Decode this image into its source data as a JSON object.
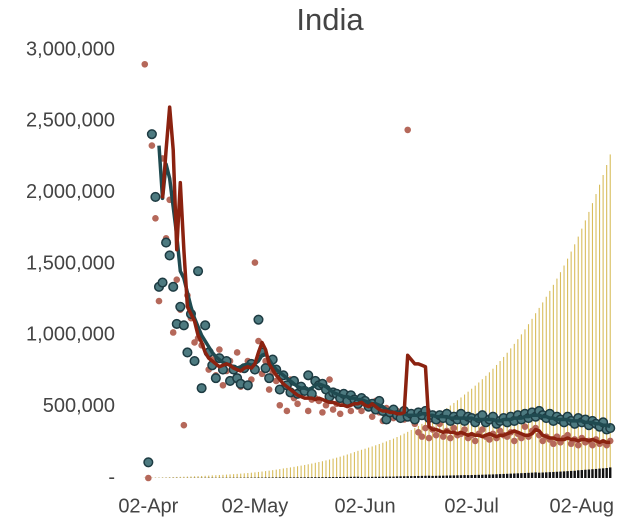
{
  "chart_data": {
    "type": "combo",
    "title": "India",
    "categories": [
      null,
      "02-Apr",
      null,
      null,
      null,
      null,
      null,
      null,
      null,
      null,
      null,
      null,
      null,
      null,
      null,
      null,
      null,
      null,
      null,
      null,
      null,
      null,
      null,
      null,
      null,
      null,
      null,
      null,
      null,
      null,
      null,
      "02-May",
      null,
      null,
      null,
      null,
      null,
      null,
      null,
      null,
      null,
      null,
      null,
      null,
      null,
      null,
      null,
      null,
      null,
      null,
      null,
      null,
      null,
      null,
      null,
      null,
      null,
      null,
      null,
      null,
      null,
      null,
      "02-Jun",
      null,
      null,
      null,
      null,
      null,
      null,
      null,
      null,
      null,
      null,
      null,
      null,
      null,
      null,
      null,
      null,
      null,
      null,
      null,
      null,
      null,
      null,
      null,
      null,
      null,
      null,
      null,
      null,
      null,
      "02-Jul",
      null,
      null,
      null,
      null,
      null,
      null,
      null,
      null,
      null,
      null,
      null,
      null,
      null,
      null,
      null,
      null,
      null,
      null,
      null,
      null,
      null,
      null,
      null,
      null,
      null,
      null,
      null,
      null,
      null,
      null,
      "02-Aug",
      null,
      null,
      null,
      null,
      null,
      null,
      null,
      null
    ],
    "ylim": [
      0,
      3000000
    ],
    "yticks": [
      {
        "value": 0,
        "label": "-"
      },
      {
        "value": 500000,
        "label": "500,000"
      },
      {
        "value": 1000000,
        "label": "1,000,000"
      },
      {
        "value": 1500000,
        "label": "1,500,000"
      },
      {
        "value": 2000000,
        "label": "2,000,000"
      },
      {
        "value": 2500000,
        "label": "2,500,000"
      },
      {
        "value": 3000000,
        "label": "3,000,000"
      }
    ],
    "series": [
      {
        "type": "bar",
        "color": "#d8bd5c",
        "values": [
          1998,
          2318,
          2689,
          3119,
          3618,
          4197,
          4869,
          5648,
          6551,
          7600,
          8307,
          9079,
          9924,
          10847,
          11856,
          12958,
          14163,
          15480,
          16920,
          18500,
          19712,
          21003,
          22379,
          23845,
          25407,
          27071,
          28844,
          30733,
          32746,
          34900,
          37238,
          39733,
          42395,
          45236,
          48267,
          51501,
          54951,
          58633,
          62561,
          67000,
          70551,
          74290,
          78227,
          82373,
          86739,
          91336,
          96177,
          101274,
          106642,
          112000,
          117544,
          123362,
          129469,
          135878,
          142604,
          149663,
          157071,
          164846,
          173006,
          181570,
          190500,
          197739,
          205253,
          213053,
          221149,
          229553,
          238276,
          247330,
          256729,
          266485,
          276000,
          287206,
          298866,
          310999,
          323626,
          336765,
          350438,
          364665,
          379470,
          394877,
          411000,
          425755,
          441039,
          456872,
          473274,
          490264,
          507864,
          526096,
          544983,
          564548,
          585000,
          605066,
          625820,
          647286,
          669488,
          692452,
          716203,
          740769,
          766177,
          792457,
          820000,
          848536,
          878065,
          908622,
          940242,
          972962,
          1006821,
          1041858,
          1078115,
          1115633,
          1155000,
          1192307,
          1230819,
          1270574,
          1311614,
          1353979,
          1397713,
          1442859,
          1489463,
          1537574,
          1587238,
          1638000,
          1692054,
          1747892,
          1805572,
          1865156,
          1926706,
          1990287,
          2055966,
          2123813,
          2193899,
          2268000
        ]
      },
      {
        "type": "bar",
        "color": "#111111",
        "values": [
          437,
          320,
          371,
          430,
          499,
          579,
          672,
          779,
          903,
          1049,
          707,
          772,
          845,
          923,
          1009,
          1102,
          1205,
          1317,
          1440,
          1580,
          1212,
          1291,
          1376,
          1466,
          1562,
          1664,
          1773,
          1889,
          2013,
          2154,
          2338,
          2495,
          2662,
          2841,
          3031,
          3234,
          3450,
          3682,
          3928,
          4439,
          3551,
          3739,
          3937,
          4146,
          4366,
          4597,
          4841,
          5097,
          5368,
          5358,
          5544,
          5818,
          6107,
          6409,
          6726,
          7059,
          7408,
          7775,
          8160,
          8564,
          8930,
          7239,
          7514,
          7800,
          8096,
          8404,
          8723,
          9054,
          9399,
          9756,
          9515,
          11206,
          11660,
          12133,
          12627,
          13139,
          13673,
          14227,
          14805,
          15407,
          16123,
          14755,
          15284,
          15833,
          16402,
          16990,
          17600,
          18232,
          18887,
          19565,
          20452,
          20066,
          20754,
          21466,
          22202,
          22964,
          23751,
          24566,
          25408,
          26280,
          27543,
          28536,
          29529,
          30557,
          31620,
          32720,
          33859,
          35037,
          36257,
          37518,
          39367,
          37307,
          38512,
          39755,
          41040,
          42365,
          43734,
          45146,
          46604,
          48111,
          49664,
          50762,
          54054,
          55838,
          57680,
          59584,
          61550,
          63581,
          65679,
          67847,
          70086,
          74101
        ]
      },
      {
        "type": "scatter",
        "color": "#b5685a",
        "values": [
          2900000,
          0,
          2330000,
          1820000,
          1240000,
          2240000,
          1680000,
          1950000,
          1020000,
          1390000,
          1180000,
          370000,
          1280000,
          1120000,
          950000,
          980000,
          930000,
          1080000,
          760000,
          830000,
          720000,
          900000,
          650000,
          750000,
          820000,
          690000,
          880000,
          640000,
          780000,
          820000,
          690000,
          1510000,
          960000,
          730000,
          820000,
          620000,
          740000,
          680000,
          510000,
          640000,
          470000,
          690000,
          560000,
          520000,
          610000,
          600000,
          470000,
          550000,
          560000,
          540000,
          460000,
          510000,
          690000,
          480000,
          520000,
          450000,
          530000,
          540000,
          470000,
          550000,
          500000,
          470000,
          520000,
          490000,
          430000,
          540000,
          460000,
          400000,
          490000,
          440000,
          420000,
          470000,
          410000,
          410000,
          2440000,
          430000,
          380000,
          320000,
          290000,
          350000,
          280000,
          340000,
          300000,
          380000,
          290000,
          330000,
          280000,
          350000,
          300000,
          310000,
          340000,
          280000,
          300000,
          260000,
          310000,
          340000,
          290000,
          270000,
          310000,
          280000,
          330000,
          300000,
          290000,
          320000,
          260000,
          310000,
          280000,
          360000,
          290000,
          330000,
          350000,
          300000,
          260000,
          290000,
          270000,
          240000,
          290000,
          250000,
          280000,
          300000,
          240000,
          270000,
          230000,
          280000,
          250000,
          260000,
          230000,
          270000,
          240000,
          250000,
          230000,
          260000
        ]
      },
      {
        "type": "scatter",
        "color": "#4d7a80",
        "edge": "#1d3b42",
        "values": [
          null,
          110000,
          2410000,
          1970000,
          1340000,
          1370000,
          1650000,
          1560000,
          1340000,
          1080000,
          1200000,
          1070000,
          880000,
          1150000,
          820000,
          1450000,
          630000,
          1070000,
          880000,
          790000,
          700000,
          840000,
          760000,
          820000,
          680000,
          760000,
          700000,
          660000,
          770000,
          650000,
          800000,
          760000,
          1110000,
          880000,
          770000,
          700000,
          830000,
          760000,
          620000,
          720000,
          650000,
          600000,
          680000,
          590000,
          640000,
          610000,
          720000,
          590000,
          680000,
          650000,
          660000,
          620000,
          570000,
          600000,
          590000,
          560000,
          590000,
          540000,
          580000,
          550000,
          520000,
          560000,
          540000,
          500000,
          520000,
          480000,
          540000,
          470000,
          410000,
          460000,
          480000,
          440000,
          420000,
          470000,
          430000,
          450000,
          410000,
          460000,
          440000,
          470000,
          420000,
          440000,
          410000,
          440000,
          420000,
          450000,
          400000,
          430000,
          410000,
          450000,
          400000,
          430000,
          420000,
          390000,
          420000,
          440000,
          390000,
          410000,
          430000,
          380000,
          400000,
          420000,
          390000,
          430000,
          400000,
          440000,
          410000,
          450000,
          420000,
          460000,
          430000,
          470000,
          440000,
          420000,
          450000,
          400000,
          430000,
          410000,
          390000,
          430000,
          400000,
          380000,
          420000,
          390000,
          410000,
          370000,
          400000,
          380000,
          360000,
          390000,
          340000,
          350000
        ]
      },
      {
        "type": "line",
        "color": "#1f4a50",
        "values": [
          null,
          null,
          null,
          null,
          2330000,
          1960000,
          2200000,
          2100000,
          1900000,
          1700000,
          1450000,
          1400000,
          1300000,
          1200000,
          1120000,
          1060000,
          1000000,
          960000,
          920000,
          880000,
          850000,
          830000,
          810000,
          800000,
          790000,
          780000,
          770000,
          780000,
          790000,
          800000,
          790000,
          800000,
          820000,
          860000,
          870000,
          830000,
          790000,
          760000,
          740000,
          720000,
          700000,
          680000,
          660000,
          640000,
          630000,
          630000,
          620000,
          630000,
          650000,
          660000,
          650000,
          640000,
          620000,
          600000,
          590000,
          580000,
          570000,
          570000,
          560000,
          560000,
          550000,
          550000,
          540000,
          530000,
          520000,
          520000,
          510000,
          500000,
          480000,
          470000,
          460000,
          460000,
          450000,
          450000,
          440000,
          440000,
          440000,
          440000,
          450000,
          450000,
          440000,
          440000,
          430000,
          430000,
          430000,
          430000,
          420000,
          420000,
          420000,
          420000,
          420000,
          420000,
          420000,
          410000,
          410000,
          410000,
          410000,
          410000,
          410000,
          400000,
          400000,
          410000,
          410000,
          410000,
          420000,
          420000,
          420000,
          430000,
          430000,
          440000,
          440000,
          440000,
          430000,
          430000,
          420000,
          420000,
          410000,
          410000,
          410000,
          410000,
          400000,
          400000,
          400000,
          400000,
          390000,
          390000,
          390000,
          380000,
          380000,
          370000,
          370000,
          360000
        ]
      },
      {
        "type": "line",
        "color": "#8b2210",
        "values": [
          null,
          null,
          null,
          null,
          null,
          1960000,
          2300000,
          2600000,
          2300000,
          1600000,
          2070000,
          1600000,
          1200000,
          1150000,
          1100000,
          1000000,
          950000,
          880000,
          840000,
          820000,
          800000,
          780000,
          790000,
          800000,
          790000,
          770000,
          760000,
          750000,
          770000,
          780000,
          770000,
          800000,
          880000,
          950000,
          900000,
          800000,
          760000,
          720000,
          690000,
          660000,
          640000,
          620000,
          600000,
          580000,
          570000,
          560000,
          560000,
          560000,
          550000,
          560000,
          550000,
          540000,
          530000,
          530000,
          520000,
          510000,
          510000,
          500000,
          510000,
          520000,
          520000,
          530000,
          510000,
          500000,
          520000,
          500000,
          480000,
          470000,
          470000,
          460000,
          460000,
          450000,
          450000,
          460000,
          860000,
          830000,
          800000,
          800000,
          790000,
          780000,
          360000,
          340000,
          340000,
          330000,
          320000,
          330000,
          320000,
          320000,
          310000,
          320000,
          310000,
          300000,
          310000,
          300000,
          300000,
          290000,
          300000,
          310000,
          300000,
          290000,
          300000,
          300000,
          310000,
          320000,
          330000,
          320000,
          310000,
          300000,
          300000,
          310000,
          340000,
          330000,
          300000,
          290000,
          280000,
          280000,
          270000,
          270000,
          270000,
          280000,
          270000,
          270000,
          260000,
          270000,
          270000,
          260000,
          270000,
          260000,
          250000,
          260000,
          250000,
          250000
        ]
      }
    ]
  }
}
